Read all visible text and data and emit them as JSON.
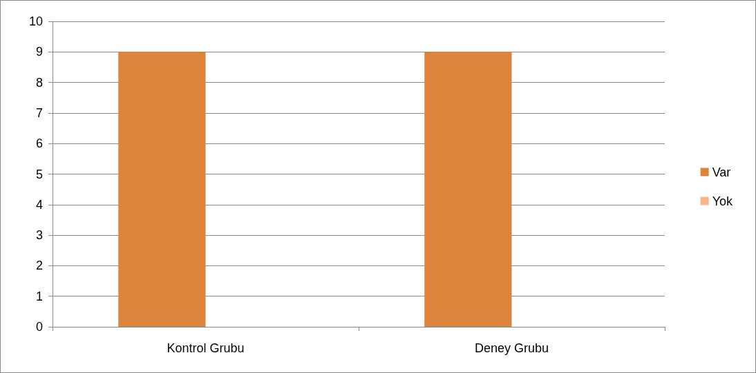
{
  "chart_data": {
    "type": "bar",
    "categories": [
      "Kontrol Grubu",
      "Deney Grubu"
    ],
    "series": [
      {
        "name": "Var",
        "color": "#dd843c",
        "values": [
          9,
          9
        ]
      },
      {
        "name": "Yok",
        "color": "#f9b48a",
        "values": [
          0,
          0
        ]
      }
    ],
    "ylim": [
      0,
      10
    ],
    "yticks": [
      0,
      1,
      2,
      3,
      4,
      5,
      6,
      7,
      8,
      9,
      10
    ],
    "grid": "y",
    "legend": "right"
  }
}
